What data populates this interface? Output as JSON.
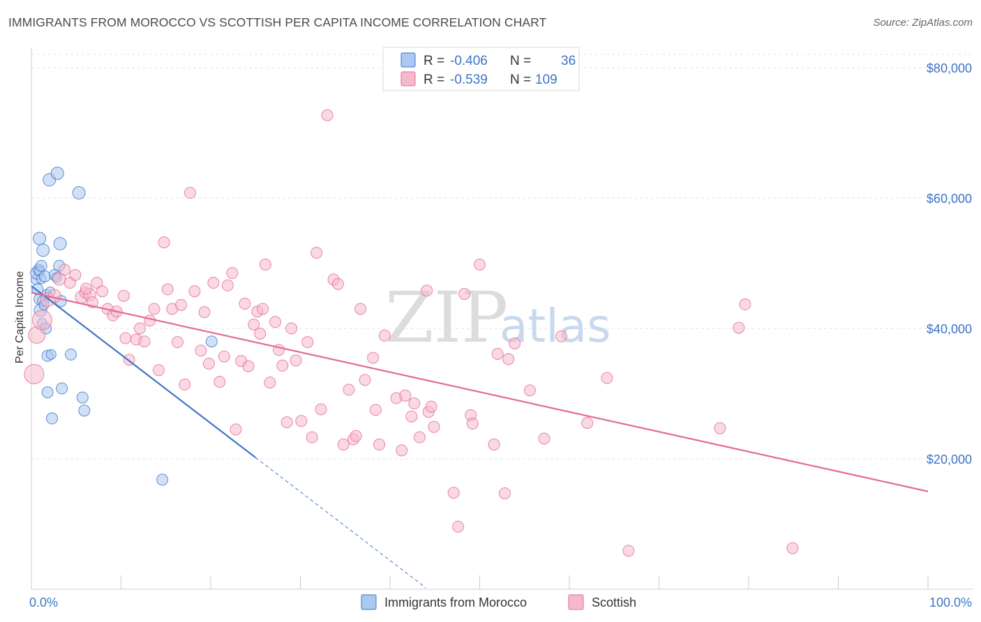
{
  "header": {
    "title": "IMMIGRANTS FROM MOROCCO VS SCOTTISH PER CAPITA INCOME CORRELATION CHART",
    "source": "Source: ZipAtlas.com"
  },
  "colors": {
    "blue": "#3d74c6",
    "blue_fill": "#aac8f0",
    "pink": "#e46a95",
    "pink_fill": "#f6b9cc",
    "grid": "#e3e3e3"
  },
  "watermark": {
    "zip": "ZIP",
    "atlas": "atlas"
  },
  "legend": {
    "r_label": "R =",
    "n_label": "N =",
    "entries": [
      {
        "r": "-0.406",
        "n": "36"
      },
      {
        "r": "-0.539",
        "n": "109"
      }
    ]
  },
  "chart_data": {
    "type": "scatter",
    "xlabel": "",
    "ylabel": "Per Capita Income",
    "xlim": [
      0,
      100
    ],
    "ylim": [
      0,
      85000
    ],
    "x_tick_labels": [
      "0.0%",
      "100.0%"
    ],
    "y_ticks": [
      20000,
      40000,
      60000,
      80000
    ],
    "y_tick_labels": [
      "$20,000",
      "$40,000",
      "$60,000",
      "$80,000"
    ],
    "grid": true,
    "legend_position": "top-center",
    "series": [
      {
        "name": "Immigrants from Morocco",
        "color": "#3d74c6",
        "trend": {
          "x0": 0,
          "y0": 46500,
          "x1": 25,
          "y1": 20200,
          "dash_to_x": 44
        },
        "points": [
          [
            0.5,
            47500,
            7
          ],
          [
            0.6,
            48500,
            9
          ],
          [
            0.7,
            46000,
            8
          ],
          [
            0.8,
            49000,
            8
          ],
          [
            0.9,
            44500,
            8
          ],
          [
            0.9,
            48800,
            7
          ],
          [
            0.9,
            53800,
            9
          ],
          [
            1.0,
            42800,
            9
          ],
          [
            1.1,
            49600,
            8
          ],
          [
            1.1,
            47600,
            7
          ],
          [
            1.2,
            40800,
            7
          ],
          [
            1.3,
            44200,
            8
          ],
          [
            1.3,
            52000,
            9
          ],
          [
            1.4,
            43600,
            7
          ],
          [
            1.5,
            48000,
            8
          ],
          [
            1.6,
            40000,
            8
          ],
          [
            1.7,
            45200,
            7
          ],
          [
            1.8,
            30200,
            8
          ],
          [
            1.8,
            35800,
            8
          ],
          [
            2.0,
            62800,
            9
          ],
          [
            2.1,
            45600,
            7
          ],
          [
            2.2,
            36000,
            7
          ],
          [
            2.3,
            26200,
            8
          ],
          [
            2.6,
            48200,
            8
          ],
          [
            2.8,
            47800,
            7
          ],
          [
            2.9,
            63800,
            9
          ],
          [
            3.1,
            49600,
            8
          ],
          [
            3.2,
            53000,
            9
          ],
          [
            3.3,
            44200,
            8
          ],
          [
            3.4,
            30800,
            8
          ],
          [
            4.4,
            36000,
            8
          ],
          [
            5.3,
            60800,
            9
          ],
          [
            5.7,
            29400,
            8
          ],
          [
            5.9,
            27400,
            8
          ],
          [
            14.6,
            16800,
            8
          ],
          [
            20.1,
            38000,
            8
          ]
        ]
      },
      {
        "name": "Scottish",
        "color": "#e46a95",
        "trend": {
          "x0": 0,
          "y0": 45500,
          "x1": 100,
          "y1": 15000
        },
        "points": [
          [
            0.3,
            33000,
            14
          ],
          [
            0.6,
            39000,
            12
          ],
          [
            1.2,
            41300,
            14
          ],
          [
            1.8,
            44400,
            10
          ],
          [
            2.6,
            45000,
            9
          ],
          [
            3.1,
            47600,
            9
          ],
          [
            3.7,
            49000,
            8
          ],
          [
            4.3,
            47000,
            8
          ],
          [
            4.9,
            48200,
            8
          ],
          [
            5.6,
            44800,
            9
          ],
          [
            6.0,
            45500,
            8
          ],
          [
            6.5,
            45200,
            9
          ],
          [
            6.8,
            44000,
            8
          ],
          [
            7.3,
            47000,
            8
          ],
          [
            7.9,
            45700,
            8
          ],
          [
            8.5,
            43000,
            8
          ],
          [
            9.1,
            42000,
            8
          ],
          [
            9.5,
            42600,
            8
          ],
          [
            10.3,
            45000,
            8
          ],
          [
            10.5,
            38500,
            8
          ],
          [
            10.9,
            35200,
            8
          ],
          [
            11.7,
            38300,
            8
          ],
          [
            12.1,
            40000,
            8
          ],
          [
            12.6,
            38000,
            8
          ],
          [
            13.2,
            41200,
            8
          ],
          [
            13.7,
            43000,
            8
          ],
          [
            14.2,
            33600,
            8
          ],
          [
            14.8,
            53200,
            8
          ],
          [
            15.2,
            46000,
            8
          ],
          [
            15.7,
            43000,
            8
          ],
          [
            16.3,
            37900,
            8
          ],
          [
            16.7,
            43600,
            8
          ],
          [
            17.1,
            31400,
            8
          ],
          [
            17.7,
            60800,
            8
          ],
          [
            18.2,
            45700,
            8
          ],
          [
            18.9,
            36600,
            8
          ],
          [
            19.3,
            42500,
            8
          ],
          [
            19.8,
            34600,
            8
          ],
          [
            20.3,
            47000,
            8
          ],
          [
            21.0,
            31800,
            8
          ],
          [
            21.5,
            35700,
            8
          ],
          [
            21.9,
            46600,
            8
          ],
          [
            22.4,
            48500,
            8
          ],
          [
            22.8,
            24500,
            8
          ],
          [
            23.4,
            35000,
            8
          ],
          [
            23.8,
            43800,
            8
          ],
          [
            24.2,
            34200,
            8
          ],
          [
            24.8,
            40600,
            8
          ],
          [
            25.2,
            42600,
            8
          ],
          [
            25.5,
            39200,
            8
          ],
          [
            26.1,
            49800,
            8
          ],
          [
            26.6,
            31700,
            8
          ],
          [
            27.2,
            41000,
            8
          ],
          [
            27.6,
            36700,
            8
          ],
          [
            28.0,
            34300,
            8
          ],
          [
            28.5,
            25600,
            8
          ],
          [
            29.0,
            40000,
            8
          ],
          [
            29.5,
            35100,
            8
          ],
          [
            30.1,
            25800,
            8
          ],
          [
            30.8,
            37900,
            8
          ],
          [
            31.3,
            23300,
            8
          ],
          [
            31.8,
            51600,
            8
          ],
          [
            32.3,
            27600,
            8
          ],
          [
            33.0,
            72700,
            8
          ],
          [
            33.7,
            47500,
            8
          ],
          [
            34.2,
            46800,
            8
          ],
          [
            34.8,
            22200,
            8
          ],
          [
            35.4,
            30600,
            8
          ],
          [
            35.9,
            23000,
            8
          ],
          [
            36.2,
            23500,
            8
          ],
          [
            36.7,
            43000,
            8
          ],
          [
            37.2,
            32100,
            8
          ],
          [
            38.1,
            35500,
            8
          ],
          [
            38.4,
            27500,
            8
          ],
          [
            38.8,
            22200,
            8
          ],
          [
            39.4,
            38900,
            8
          ],
          [
            40.7,
            29300,
            8
          ],
          [
            41.3,
            21300,
            8
          ],
          [
            41.7,
            29700,
            8
          ],
          [
            42.4,
            26500,
            8
          ],
          [
            42.7,
            28500,
            8
          ],
          [
            43.3,
            23300,
            8
          ],
          [
            44.1,
            45800,
            8
          ],
          [
            44.3,
            27200,
            8
          ],
          [
            44.6,
            28000,
            8
          ],
          [
            44.9,
            24900,
            8
          ],
          [
            47.1,
            14800,
            8
          ],
          [
            47.6,
            9600,
            8
          ],
          [
            48.3,
            45300,
            8
          ],
          [
            49.0,
            26700,
            8
          ],
          [
            49.2,
            25400,
            8
          ],
          [
            50.0,
            49800,
            8
          ],
          [
            51.6,
            22200,
            8
          ],
          [
            52.0,
            36100,
            8
          ],
          [
            52.8,
            14700,
            8
          ],
          [
            53.2,
            35300,
            8
          ],
          [
            53.9,
            37700,
            8
          ],
          [
            55.6,
            30500,
            8
          ],
          [
            57.2,
            23100,
            8
          ],
          [
            59.1,
            38800,
            8
          ],
          [
            62.0,
            25500,
            8
          ],
          [
            64.2,
            32400,
            8
          ],
          [
            66.6,
            5900,
            8
          ],
          [
            76.8,
            24700,
            8
          ],
          [
            78.9,
            40100,
            8
          ],
          [
            79.6,
            43700,
            8
          ],
          [
            84.9,
            6300,
            8
          ],
          [
            6.1,
            46100,
            8
          ],
          [
            25.8,
            43000,
            8
          ]
        ]
      }
    ]
  }
}
